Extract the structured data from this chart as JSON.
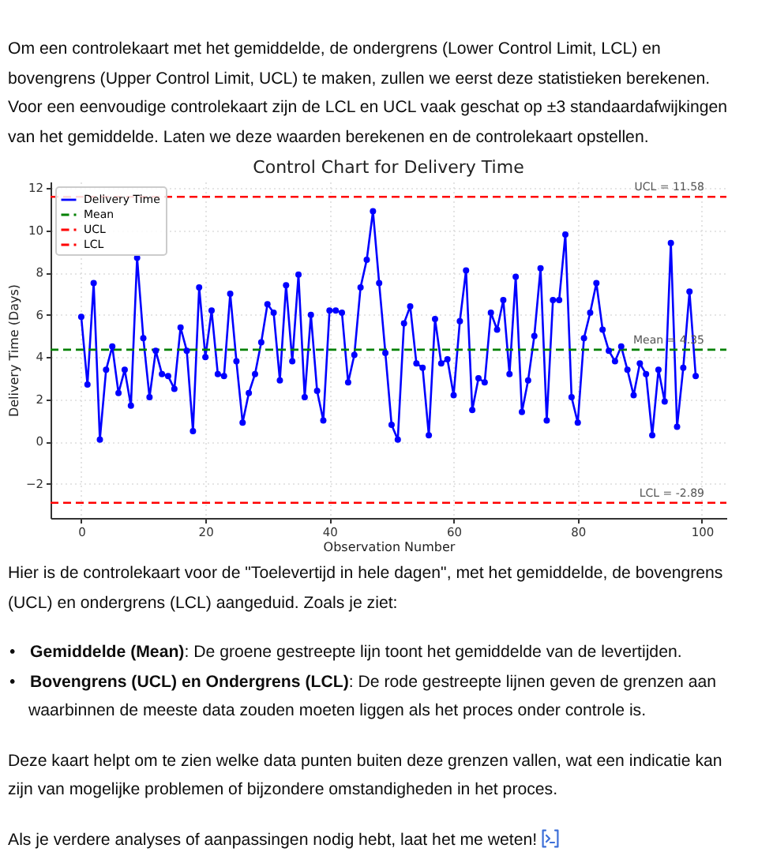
{
  "chart_data": {
    "type": "line",
    "title": "Control Chart for Delivery Time",
    "xlabel": "Observation Number",
    "ylabel": "Delivery Time (Days)",
    "series": [
      {
        "name": "Delivery Time",
        "color": "#0000ff",
        "marker": "circle",
        "line_style": "solid",
        "x": [
          0,
          1,
          2,
          3,
          4,
          5,
          6,
          7,
          8,
          9,
          10,
          11,
          12,
          13,
          14,
          15,
          16,
          17,
          18,
          19,
          20,
          21,
          22,
          23,
          24,
          25,
          26,
          27,
          28,
          29,
          30,
          31,
          32,
          33,
          34,
          35,
          36,
          37,
          38,
          39,
          40,
          41,
          42,
          43,
          44,
          45,
          46,
          47,
          48,
          49,
          50,
          51,
          52,
          53,
          54,
          55,
          56,
          57,
          58,
          59,
          60,
          61,
          62,
          63,
          64,
          65,
          66,
          67,
          68,
          69,
          70,
          71,
          72,
          73,
          74,
          75,
          76,
          77,
          78,
          79,
          80,
          81,
          82,
          83,
          84,
          85,
          86,
          87,
          88,
          89,
          90,
          91,
          92,
          93,
          94,
          95,
          96,
          97,
          98,
          99
        ],
        "values": [
          5.9,
          2.7,
          7.5,
          0.1,
          3.4,
          4.5,
          2.3,
          3.4,
          1.7,
          8.7,
          4.9,
          2.1,
          4.3,
          3.2,
          3.1,
          2.5,
          5.4,
          4.3,
          0.5,
          7.3,
          4.0,
          6.2,
          3.2,
          3.1,
          7.0,
          3.8,
          0.9,
          2.3,
          3.2,
          4.7,
          6.5,
          6.1,
          2.9,
          7.4,
          3.8,
          7.9,
          2.1,
          6.0,
          2.4,
          1.0,
          6.2,
          6.2,
          6.1,
          2.8,
          4.1,
          7.3,
          8.6,
          10.9,
          7.5,
          4.2,
          0.8,
          0.1,
          5.6,
          6.4,
          3.7,
          3.5,
          0.3,
          5.8,
          3.7,
          3.9,
          2.2,
          5.7,
          8.1,
          1.5,
          3.0,
          2.8,
          6.1,
          5.3,
          6.7,
          3.2,
          7.8,
          1.4,
          2.9,
          5.0,
          8.2,
          1.0,
          6.7,
          6.7,
          9.8,
          2.1,
          0.9,
          4.9,
          6.1,
          7.5,
          5.3,
          4.3,
          3.8,
          4.5,
          3.4,
          2.2,
          3.7,
          3.2,
          0.3,
          3.4,
          1.9,
          9.4,
          0.7,
          3.5,
          7.1,
          3.1
        ]
      },
      {
        "name": "Mean",
        "color": "#008000",
        "marker": "none",
        "line_style": "dashed",
        "x": [
          -4.95,
          103.95
        ],
        "values": [
          4.35,
          4.35
        ]
      },
      {
        "name": "UCL",
        "color": "#ff0000",
        "marker": "none",
        "line_style": "dashed",
        "x": [
          -4.95,
          103.95
        ],
        "values": [
          11.58,
          11.58
        ]
      },
      {
        "name": "LCL",
        "color": "#ff0000",
        "marker": "none",
        "line_style": "dashed",
        "x": [
          -4.95,
          103.95
        ],
        "values": [
          -2.89,
          -2.89
        ]
      }
    ],
    "xlim": [
      -4.95,
      103.95
    ],
    "xticks": [
      0,
      20,
      40,
      60,
      80,
      100
    ],
    "ylim": [
      -3.61,
      12.3
    ],
    "yticks": [
      {
        "value": -2,
        "label": "−2"
      },
      0,
      2,
      4,
      6,
      8,
      10,
      12
    ],
    "grid": true,
    "legend": "top left",
    "annotations": [
      {
        "text": "UCL = 11.58",
        "y": 11.58
      },
      {
        "text": "Mean = 4.35",
        "y": 4.35
      },
      {
        "text": "LCL = -2.89",
        "y": -2.89
      },
      "Om een controlekaart met het gemiddelde, de ondergrens (Lower Control Limit, LCL) en bovengrens (Upper Control Limit, UCL) te maken, zullen we eerst deze statistieken berekenen. Voor een eenvoudige controlekaart zijn de LCL en UCL vaak geschat op ±3 standaardafwijkingen van het gemiddelde. Laten we deze waarden berekenen en de controlekaart opstellen.",
      "Hier is de controlekaart voor de \"Toelevertijd in hele dagen\", met het gemiddelde, de bovengrens (UCL) en ondergrens (LCL) aangeduid. Zoals je ziet:",
      "• Gemiddelde (Mean): De groene gestreepte lijn toont het gemiddelde van de levertijden.",
      "• Bovengrens (UCL) en Ondergrens (LCL): De rode gestreepte lijnen geven de grenzen aan waarbinnen de meeste data zouden moeten liggen als het proces onder controle is.",
      "Deze kaart helpt om te zien welke data punten buiten deze grenzen vallen, wat een indicatie kan zijn van mogelijke problemen of bijzondere omstandigheden in het proces.",
      "Als je verdere analyses of aanpassingen nodig hebt, laat het me weten!"
    ]
  }
}
